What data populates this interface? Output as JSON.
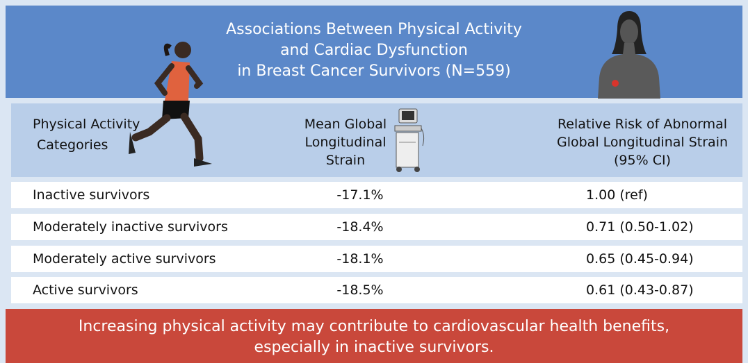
{
  "header": {
    "title_lines": [
      "Associations Between Physical Activity",
      "and Cardiac Dysfunction",
      "in Breast Cancer Survivors (N=559)"
    ]
  },
  "table": {
    "columns": [
      [
        "Physical Activity",
        "Categories"
      ],
      [
        "Mean Global",
        "Longitudinal",
        "Strain"
      ],
      [
        "Relative Risk of Abnormal",
        "Global Longitudinal Strain",
        "(95% CI)"
      ]
    ],
    "rows": [
      [
        "Inactive survivors",
        "-17.1%",
        "1.00 (ref)"
      ],
      [
        "Moderately inactive survivors",
        "-18.4%",
        "0.71 (0.50-1.02)"
      ],
      [
        "Moderately active survivors",
        "-18.1%",
        "0.65 (0.45-0.94)"
      ],
      [
        "Active survivors",
        "-18.5%",
        "0.61 (0.43-0.87)"
      ]
    ]
  },
  "footer": {
    "lines": [
      "Increasing physical activity may contribute to cardiovascular health benefits,",
      "especially in inactive survivors."
    ]
  }
}
